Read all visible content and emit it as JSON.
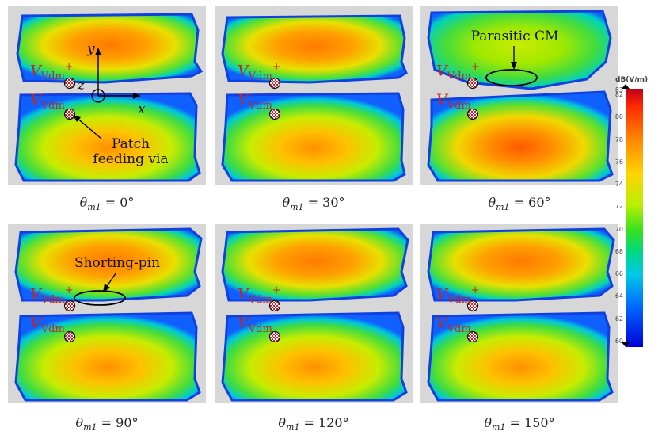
{
  "panels": [
    {
      "caption_theta": "θ",
      "caption_sub": "m1",
      "caption_value": " = 0°"
    },
    {
      "caption_theta": "θ",
      "caption_sub": "m1",
      "caption_value": " = 30°"
    },
    {
      "caption_theta": "θ",
      "caption_sub": "m1",
      "caption_value": " = 60°"
    },
    {
      "caption_theta": "θ",
      "caption_sub": "m1",
      "caption_value": " = 90°"
    },
    {
      "caption_theta": "θ",
      "caption_sub": "m1",
      "caption_value": " = 120°"
    },
    {
      "caption_theta": "θ",
      "caption_sub": "m1",
      "caption_value": " = 150°"
    }
  ],
  "voltage_label": {
    "symbol": "V",
    "subscript": "Vdm",
    "plus": "+"
  },
  "annotations": {
    "patch_feeding_line1": "Patch",
    "patch_feeding_line2": "feeding via",
    "parasitic_cm": "Parasitic CM",
    "shorting_pin": "Shorting-pin"
  },
  "axes": {
    "x": "x",
    "y": "y",
    "z": "z"
  },
  "colorbar": {
    "title": "dB(V/m)",
    "max_label": "83",
    "ticks": [
      "82",
      "80",
      "78",
      "76",
      "74",
      "72",
      "70",
      "68",
      "66",
      "64",
      "62",
      "60"
    ],
    "colors": {
      "high": "#c0001a",
      "mid": "#36e020",
      "low": "#0000d8"
    }
  }
}
